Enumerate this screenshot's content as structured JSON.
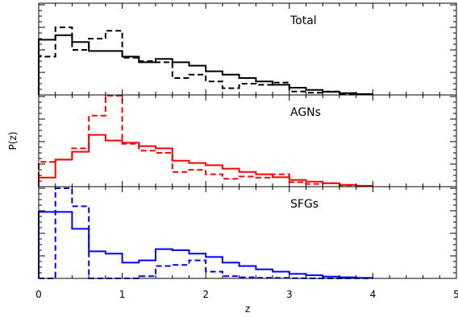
{
  "chart_data": {
    "type": "line",
    "xlabel": "z",
    "ylabel": "P(z)",
    "xlim": [
      0,
      5
    ],
    "xticks": [
      "0",
      "1",
      "2",
      "3",
      "4",
      "5"
    ],
    "grid": false,
    "step_width": 0.2,
    "panels": [
      {
        "label": "Total",
        "color": "#000000",
        "series": [
          {
            "style": "solid",
            "x": [
              0.1,
              0.3,
              0.5,
              0.7,
              0.9,
              1.1,
              1.3,
              1.5,
              1.7,
              1.9,
              2.1,
              2.3,
              2.5,
              2.7,
              2.9,
              3.1,
              3.3,
              3.5,
              3.7,
              3.9
            ],
            "y": [
              2.45,
              2.65,
              2.35,
              1.95,
              1.95,
              1.7,
              1.45,
              1.6,
              1.45,
              1.3,
              1.05,
              0.9,
              0.75,
              0.6,
              0.45,
              0.32,
              0.22,
              0.14,
              0.08,
              0.04
            ]
          },
          {
            "style": "dashed",
            "x": [
              0.1,
              0.3,
              0.5,
              0.7,
              0.9,
              1.1,
              1.3,
              1.5,
              1.7,
              1.9,
              2.1,
              2.3,
              2.5,
              2.7,
              2.9,
              3.1,
              3.3,
              3.5,
              3.7,
              3.9
            ],
            "y": [
              1.7,
              3.0,
              2.0,
              2.5,
              2.85,
              1.65,
              1.5,
              1.45,
              0.75,
              0.9,
              0.6,
              0.3,
              0.5,
              0.45,
              0.55,
              0.15,
              0.1,
              0.15,
              0.05,
              0.02
            ]
          }
        ]
      },
      {
        "label": "AGNs",
        "color": "#ff0000",
        "series": [
          {
            "style": "solid",
            "x": [
              0.1,
              0.3,
              0.5,
              0.7,
              0.9,
              1.1,
              1.3,
              1.5,
              1.7,
              1.9,
              2.1,
              2.3,
              2.5,
              2.7,
              2.9,
              3.1,
              3.3,
              3.5,
              3.7,
              3.9
            ],
            "y": [
              0.4,
              1.2,
              1.55,
              2.3,
              2.05,
              1.95,
              1.8,
              1.7,
              1.15,
              1.05,
              0.95,
              0.8,
              0.65,
              0.55,
              0.42,
              0.3,
              0.22,
              0.15,
              0.08,
              0.04
            ]
          },
          {
            "style": "dashed",
            "x": [
              0.1,
              0.3,
              0.5,
              0.7,
              0.9,
              1.1,
              1.3,
              1.5,
              1.7,
              1.9,
              2.1,
              2.3,
              2.5,
              2.7,
              2.9,
              3.1,
              3.3,
              3.5,
              3.7,
              3.9
            ],
            "y": [
              1.1,
              1.2,
              1.7,
              3.15,
              4.1,
              1.9,
              1.6,
              1.5,
              0.65,
              0.75,
              0.55,
              0.35,
              0.45,
              0.4,
              0.55,
              0.2,
              0.12,
              0.15,
              0.06,
              0.03
            ]
          }
        ]
      },
      {
        "label": "SFGs",
        "color": "#0000ff",
        "series": [
          {
            "style": "solid",
            "x": [
              0.1,
              0.3,
              0.5,
              0.7,
              0.9,
              1.1,
              1.3,
              1.5,
              1.7,
              1.9,
              2.1,
              2.3,
              2.5,
              2.7,
              2.9,
              3.1,
              3.3,
              3.5,
              3.7,
              3.9
            ],
            "y": [
              2.95,
              2.95,
              2.2,
              1.2,
              1.1,
              0.7,
              0.8,
              1.3,
              1.25,
              1.1,
              0.95,
              0.7,
              0.55,
              0.4,
              0.3,
              0.2,
              0.14,
              0.08,
              0.05,
              0.02
            ]
          },
          {
            "style": "dashed",
            "x": [
              0.1,
              0.3,
              0.5,
              0.7,
              0.9,
              1.1,
              1.3,
              1.5,
              1.7,
              1.9,
              2.1,
              2.3,
              2.5,
              2.7,
              2.9,
              3.1,
              3.3,
              3.5,
              3.7,
              3.9
            ],
            "y": [
              0.0,
              4.0,
              3.2,
              0.0,
              0.0,
              0.0,
              0.1,
              0.55,
              0.6,
              0.8,
              0.3,
              0.1,
              0.05,
              0.03,
              0.02,
              0.01,
              0.0,
              0.0,
              0.0,
              0.0
            ]
          }
        ]
      }
    ]
  }
}
